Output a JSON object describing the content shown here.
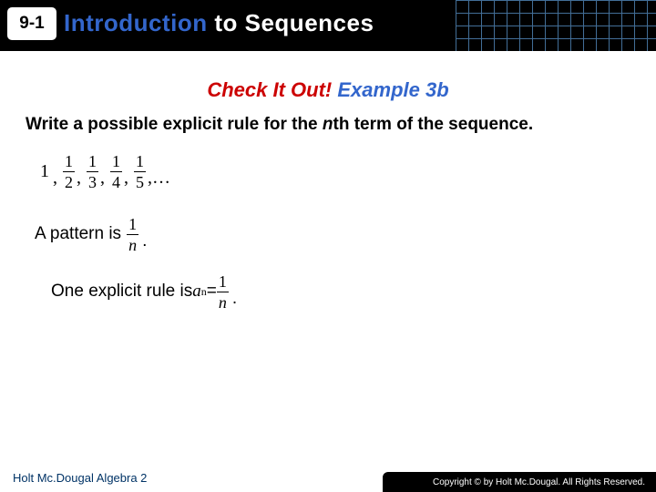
{
  "header": {
    "lesson_number": "9-1",
    "title_intro": "Introduction",
    "title_rest": " to Sequences"
  },
  "subtitle": {
    "check": "Check It Out! ",
    "example": "Example 3b"
  },
  "prompt": {
    "line1": "Write a possible explicit rule for the ",
    "nth": "n",
    "line2": "th term of the sequence."
  },
  "sequence": {
    "first": "1",
    "fracs": [
      {
        "num": "1",
        "den": "2"
      },
      {
        "num": "1",
        "den": "3"
      },
      {
        "num": "1",
        "den": "4"
      },
      {
        "num": "1",
        "den": "5"
      }
    ],
    "tail": ",…"
  },
  "pattern": {
    "label": "A pattern is ",
    "frac": {
      "num": "1",
      "den": "n"
    }
  },
  "rule": {
    "label": "One explicit rule is ",
    "a": "a",
    "sub": "n",
    "eq": " = ",
    "frac": {
      "num": "1",
      "den": "n"
    }
  },
  "footer": {
    "left": "Holt Mc.Dougal Algebra 2",
    "right": "Copyright © by Holt Mc.Dougal. All Rights Reserved."
  },
  "colors": {
    "blue": "#3366cc",
    "red": "#cc0000",
    "darkblue": "#003366"
  }
}
